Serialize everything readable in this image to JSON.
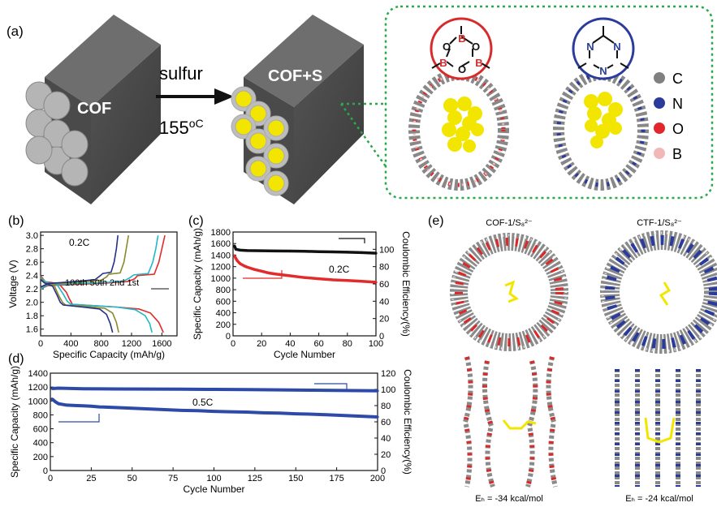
{
  "panel_labels": {
    "a": "(a)",
    "b": "(b)",
    "c": "(c)",
    "d": "(d)",
    "e": "(e)"
  },
  "panel_a": {
    "cof_label": "COF",
    "arrow_top": "sulfur",
    "arrow_bottom_num": "155",
    "arrow_bottom_unit": "oC",
    "cofs_label": "COF+S",
    "ring_left_atoms": [
      "B",
      "O",
      "B",
      "O",
      "B",
      "O"
    ],
    "ring_right_atoms": [
      "N",
      "N",
      "N"
    ],
    "legend": [
      {
        "label": "C",
        "color": "#808080"
      },
      {
        "label": "N",
        "color": "#2a3b9c"
      },
      {
        "label": "O",
        "color": "#e1262c"
      },
      {
        "label": "B",
        "color": "#f2b8b8"
      }
    ]
  },
  "panel_e": {
    "left_title": "COF-1/S₈²⁻",
    "right_title": "CTF-1/S₈²⁻",
    "left_energy": "Eₕ = -34 kcal/mol",
    "right_energy": "Eₕ = -24 kcal/mol"
  },
  "chart_data": [
    {
      "id": "b",
      "type": "line",
      "xlabel": "Specific Capacity (mAh/g)",
      "ylabel": "Voltage (V)",
      "xlim": [
        0,
        1800
      ],
      "ylim": [
        1.5,
        3.05
      ],
      "xticks": [
        0,
        400,
        800,
        1200,
        1600
      ],
      "yticks": [
        1.6,
        1.8,
        2.0,
        2.2,
        2.4,
        2.6,
        2.8,
        3.0
      ],
      "annotations": [
        "0.2C",
        "100th 50th 2nd  1st"
      ],
      "series": [
        {
          "name": "1st",
          "color": "#e22b2b",
          "discharge": [
            [
              0,
              2.4
            ],
            [
              60,
              2.31
            ],
            [
              240,
              2.28
            ],
            [
              340,
              2.15
            ],
            [
              380,
              2.05
            ],
            [
              420,
              1.97
            ],
            [
              700,
              1.95
            ],
            [
              1000,
              1.93
            ],
            [
              1300,
              1.9
            ],
            [
              1450,
              1.84
            ],
            [
              1560,
              1.7
            ],
            [
              1620,
              1.55
            ]
          ],
          "charge": [
            [
              0,
              2.2
            ],
            [
              100,
              2.25
            ],
            [
              500,
              2.27
            ],
            [
              900,
              2.29
            ],
            [
              1150,
              2.31
            ],
            [
              1240,
              2.35
            ],
            [
              1280,
              2.4
            ],
            [
              1500,
              2.42
            ],
            [
              1560,
              2.6
            ],
            [
              1600,
              2.8
            ],
            [
              1640,
              3.0
            ]
          ]
        },
        {
          "name": "2nd",
          "color": "#20b8c8",
          "discharge": [
            [
              0,
              2.38
            ],
            [
              60,
              2.31
            ],
            [
              220,
              2.26
            ],
            [
              300,
              2.12
            ],
            [
              350,
              2.02
            ],
            [
              400,
              1.97
            ],
            [
              700,
              1.95
            ],
            [
              1000,
              1.93
            ],
            [
              1250,
              1.89
            ],
            [
              1380,
              1.8
            ],
            [
              1440,
              1.68
            ],
            [
              1470,
              1.55
            ]
          ],
          "charge": [
            [
              0,
              2.2
            ],
            [
              100,
              2.26
            ],
            [
              500,
              2.28
            ],
            [
              900,
              2.3
            ],
            [
              1100,
              2.32
            ],
            [
              1180,
              2.37
            ],
            [
              1230,
              2.41
            ],
            [
              1420,
              2.43
            ],
            [
              1480,
              2.6
            ],
            [
              1520,
              2.8
            ],
            [
              1550,
              3.0
            ]
          ]
        },
        {
          "name": "50th",
          "color": "#8a8a2a",
          "discharge": [
            [
              0,
              2.36
            ],
            [
              50,
              2.3
            ],
            [
              180,
              2.25
            ],
            [
              240,
              2.1
            ],
            [
              290,
              2.0
            ],
            [
              330,
              1.96
            ],
            [
              600,
              1.94
            ],
            [
              850,
              1.91
            ],
            [
              950,
              1.84
            ],
            [
              1000,
              1.7
            ],
            [
              1030,
              1.55
            ]
          ],
          "charge": [
            [
              0,
              2.22
            ],
            [
              100,
              2.27
            ],
            [
              500,
              2.3
            ],
            [
              800,
              2.33
            ],
            [
              870,
              2.38
            ],
            [
              900,
              2.42
            ],
            [
              1050,
              2.44
            ],
            [
              1100,
              2.6
            ],
            [
              1130,
              2.8
            ],
            [
              1160,
              3.0
            ]
          ]
        },
        {
          "name": "100th",
          "color": "#25308a",
          "discharge": [
            [
              0,
              2.34
            ],
            [
              50,
              2.29
            ],
            [
              160,
              2.24
            ],
            [
              220,
              2.1
            ],
            [
              260,
              2.0
            ],
            [
              300,
              1.96
            ],
            [
              550,
              1.93
            ],
            [
              780,
              1.9
            ],
            [
              870,
              1.82
            ],
            [
              920,
              1.68
            ],
            [
              950,
              1.55
            ]
          ],
          "charge": [
            [
              0,
              2.23
            ],
            [
              100,
              2.28
            ],
            [
              450,
              2.31
            ],
            [
              720,
              2.34
            ],
            [
              790,
              2.4
            ],
            [
              820,
              2.43
            ],
            [
              930,
              2.45
            ],
            [
              970,
              2.6
            ],
            [
              1000,
              2.8
            ],
            [
              1020,
              3.0
            ]
          ]
        }
      ]
    },
    {
      "id": "c",
      "type": "line",
      "xlabel": "Cycle Number",
      "ylabel": "Specific Capacity (mAh/g)",
      "ylabel_right": "Coulombic Efficiency(%)",
      "xlim": [
        0,
        100
      ],
      "ylim": [
        0,
        1800
      ],
      "ylim_right": [
        0,
        120
      ],
      "xticks": [
        0,
        20,
        40,
        60,
        80,
        100
      ],
      "yticks": [
        0,
        200,
        400,
        600,
        800,
        1000,
        1200,
        1400,
        1600,
        1800
      ],
      "yticks_right": [
        0,
        20,
        40,
        60,
        80,
        100
      ],
      "annotations": [
        "0.2C"
      ],
      "series": [
        {
          "name": "capacity",
          "axis": "left",
          "color": "#e22b2b",
          "x": [
            1,
            2,
            3,
            5,
            8,
            10,
            15,
            20,
            25,
            30,
            40,
            50,
            60,
            70,
            80,
            90,
            100
          ],
          "y": [
            1390,
            1340,
            1300,
            1250,
            1210,
            1190,
            1150,
            1120,
            1090,
            1070,
            1040,
            1010,
            990,
            970,
            960,
            945,
            930
          ]
        },
        {
          "name": "coulombic",
          "axis": "right",
          "color": "#111111",
          "x": [
            1,
            2,
            5,
            10,
            20,
            30,
            40,
            50,
            60,
            70,
            80,
            90,
            100
          ],
          "y": [
            104,
            100,
            99,
            98.5,
            98.3,
            98.1,
            98,
            97.7,
            97.3,
            97,
            96.7,
            96.2,
            95.5
          ]
        }
      ]
    },
    {
      "id": "d",
      "type": "line",
      "xlabel": "Cycle Number",
      "ylabel": "Specific Capacity (mAh/g)",
      "ylabel_right": "Coulombic Efficiency(%)",
      "xlim": [
        0,
        200
      ],
      "ylim": [
        0,
        1400
      ],
      "ylim_right": [
        0,
        120
      ],
      "xticks": [
        0,
        25,
        50,
        75,
        100,
        125,
        150,
        175,
        200
      ],
      "yticks": [
        0,
        200,
        400,
        600,
        800,
        1000,
        1200,
        1400
      ],
      "yticks_right": [
        0,
        20,
        40,
        60,
        80,
        100,
        120
      ],
      "annotations": [
        "0.5C"
      ],
      "series": [
        {
          "name": "capacity",
          "axis": "left",
          "color": "#2e4aa8",
          "x": [
            1,
            3,
            5,
            10,
            15,
            20,
            25,
            30,
            40,
            50,
            60,
            70,
            80,
            90,
            100,
            110,
            120,
            130,
            140,
            150,
            160,
            170,
            180,
            190,
            200
          ],
          "y": [
            1030,
            990,
            960,
            940,
            935,
            930,
            925,
            915,
            905,
            895,
            885,
            875,
            865,
            860,
            850,
            845,
            840,
            830,
            825,
            815,
            810,
            800,
            790,
            780,
            770
          ]
        },
        {
          "name": "coulombic",
          "axis": "right",
          "color": "#2e4aa8",
          "x": [
            1,
            5,
            10,
            20,
            40,
            60,
            80,
            100,
            120,
            140,
            160,
            180,
            200
          ],
          "y": [
            101,
            101.5,
            101.2,
            100.8,
            100.5,
            100.4,
            100.2,
            100,
            99.7,
            99.4,
            99,
            98.6,
            98.3
          ]
        }
      ]
    }
  ]
}
